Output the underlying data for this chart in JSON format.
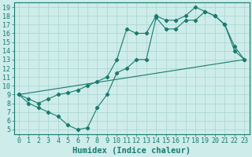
{
  "line1_x": [
    0,
    1,
    2,
    3,
    4,
    5,
    6,
    7,
    8,
    9,
    10,
    11,
    12,
    13,
    14,
    15,
    16,
    17,
    18,
    19,
    20,
    21,
    22,
    23
  ],
  "line1_y": [
    9,
    8,
    7.5,
    7,
    6.5,
    5.5,
    5,
    5.2,
    7.5,
    9,
    11.5,
    12,
    13,
    13,
    17.8,
    16.5,
    16.5,
    17.5,
    17.5,
    18.5,
    18,
    17,
    14.5,
    13
  ],
  "line2_x": [
    0,
    1,
    2,
    3,
    4,
    5,
    6,
    7,
    8,
    9,
    10,
    11,
    12,
    13,
    14,
    15,
    16,
    17,
    18,
    19,
    20,
    21,
    22,
    23
  ],
  "line2_y": [
    9,
    8.5,
    8,
    8.5,
    9,
    9.2,
    9.5,
    10,
    10.5,
    11,
    13,
    16.5,
    16,
    16,
    18,
    17.5,
    17.5,
    18,
    19,
    18.5,
    18,
    17,
    14,
    13
  ],
  "line3_x": [
    0,
    23
  ],
  "line3_y": [
    9,
    13
  ],
  "line_color": "#1a7a6e",
  "bg_color": "#cdecea",
  "grid_color": "#aed8d5",
  "xlabel": "Humidex (Indice chaleur)",
  "xlim": [
    -0.5,
    23.5
  ],
  "ylim": [
    4.5,
    19.5
  ],
  "yticks": [
    5,
    6,
    7,
    8,
    9,
    10,
    11,
    12,
    13,
    14,
    15,
    16,
    17,
    18,
    19
  ],
  "xticks": [
    0,
    1,
    2,
    3,
    4,
    5,
    6,
    7,
    8,
    9,
    10,
    11,
    12,
    13,
    14,
    15,
    16,
    17,
    18,
    19,
    20,
    21,
    22,
    23
  ],
  "tick_fontsize": 6,
  "xlabel_fontsize": 7.5
}
